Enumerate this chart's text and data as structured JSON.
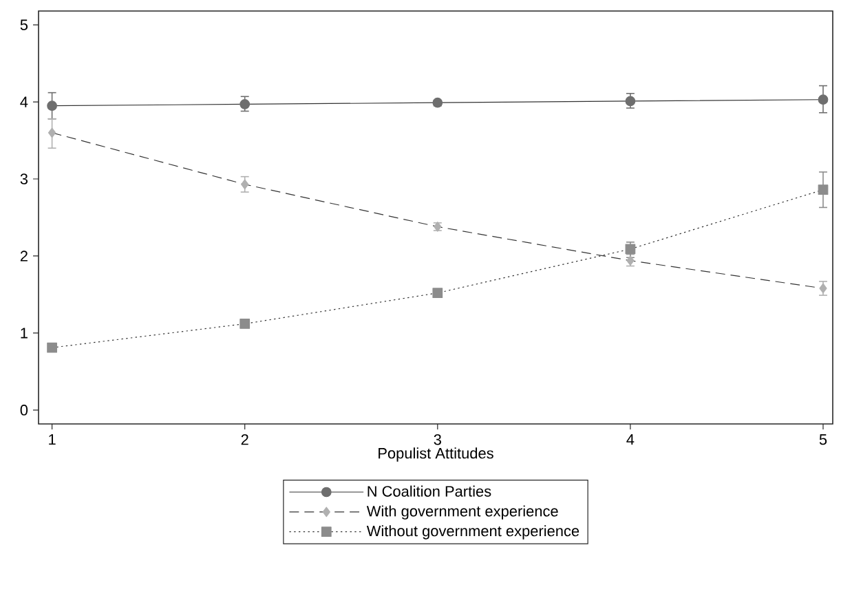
{
  "chart_data": {
    "type": "line",
    "xlabel": "Populist Attitudes",
    "x": [
      1,
      2,
      3,
      4,
      5
    ],
    "xlim": [
      0.93,
      5.05
    ],
    "ylim": [
      -0.18,
      5.18
    ],
    "xticks": [
      1,
      2,
      3,
      4,
      5
    ],
    "yticks": [
      0,
      1,
      2,
      3,
      4,
      5
    ],
    "grid": false,
    "legend": "bottom",
    "series": [
      {
        "name": "N Coalition Parties",
        "color": "#6e6e6e",
        "marker": "circle",
        "line_style": "solid",
        "values": [
          3.95,
          3.97,
          3.99,
          4.01,
          4.03
        ],
        "errors": [
          [
            3.78,
            4.12
          ],
          [
            3.88,
            4.07
          ],
          [
            3.95,
            4.02
          ],
          [
            3.92,
            4.11
          ],
          [
            3.86,
            4.21
          ]
        ]
      },
      {
        "name": "With government experience",
        "color": "#b0b0b0",
        "marker": "diamond",
        "line_style": "dashed",
        "values": [
          3.6,
          2.93,
          2.38,
          1.94,
          1.58
        ],
        "errors": [
          [
            3.4,
            3.78
          ],
          [
            2.83,
            3.03
          ],
          [
            2.33,
            2.43
          ],
          [
            1.87,
            2.02
          ],
          [
            1.49,
            1.67
          ]
        ]
      },
      {
        "name": "Without government experience",
        "color": "#8c8c8c",
        "marker": "square",
        "line_style": "dotted",
        "values": [
          0.81,
          1.12,
          1.52,
          2.09,
          2.86
        ],
        "errors": [
          [
            0.77,
            0.85
          ],
          [
            1.08,
            1.16
          ],
          [
            1.48,
            1.56
          ],
          [
            1.98,
            2.18
          ],
          [
            2.63,
            3.09
          ]
        ]
      }
    ]
  }
}
